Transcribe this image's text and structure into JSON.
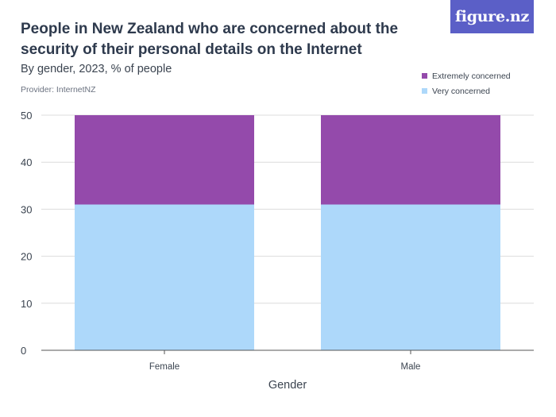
{
  "logo": {
    "text": "figure.nz"
  },
  "chart_data": {
    "type": "bar",
    "stacked": true,
    "title": "People in New Zealand who are concerned about the security of their personal details on the Internet",
    "subtitle": "By gender, 2023, % of people",
    "provider": "Provider: InternetNZ",
    "xlabel": "Gender",
    "ylabel": "",
    "categories": [
      "Female",
      "Male"
    ],
    "ylim": [
      0,
      50
    ],
    "yticks": [
      0,
      10,
      20,
      30,
      40,
      50
    ],
    "grid": true,
    "legend_position": "top-right",
    "series": [
      {
        "name": "Very concerned",
        "color": "#add8fa",
        "values": [
          31,
          31
        ]
      },
      {
        "name": "Extremely concerned",
        "color": "#944aab",
        "values": [
          19,
          19
        ]
      }
    ],
    "legend_order": [
      1,
      0
    ]
  }
}
